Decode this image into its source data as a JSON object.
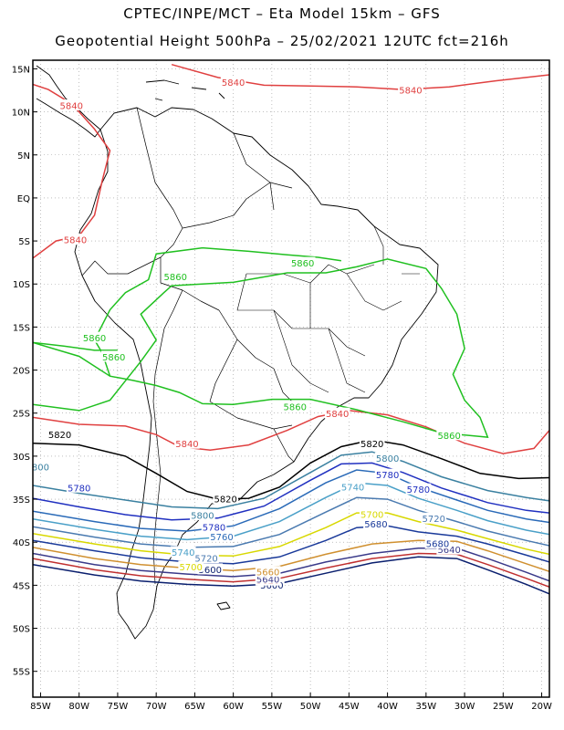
{
  "header": {
    "line1": "CPTEC/INPE/MCT –  Eta Model 15km – GFS",
    "line2": "Geopotential Height 500hPa – 25/02/2021 12UTC fct=216h"
  },
  "axes": {
    "lat_ticks": [
      {
        "lat": 15,
        "label": "15N"
      },
      {
        "lat": 10,
        "label": "10N"
      },
      {
        "lat": 5,
        "label": "5N"
      },
      {
        "lat": 0,
        "label": "EQ"
      },
      {
        "lat": -5,
        "label": "5S"
      },
      {
        "lat": -10,
        "label": "10S"
      },
      {
        "lat": -15,
        "label": "15S"
      },
      {
        "lat": -20,
        "label": "20S"
      },
      {
        "lat": -25,
        "label": "25S"
      },
      {
        "lat": -30,
        "label": "30S"
      },
      {
        "lat": -35,
        "label": "35S"
      },
      {
        "lat": -40,
        "label": "40S"
      },
      {
        "lat": -45,
        "label": "45S"
      },
      {
        "lat": -50,
        "label": "50S"
      },
      {
        "lat": -55,
        "label": "55S"
      }
    ],
    "lon_ticks": [
      {
        "lon": -85,
        "label": "85W"
      },
      {
        "lon": -80,
        "label": "80W"
      },
      {
        "lon": -75,
        "label": "75W"
      },
      {
        "lon": -70,
        "label": "70W"
      },
      {
        "lon": -65,
        "label": "65W"
      },
      {
        "lon": -60,
        "label": "60W"
      },
      {
        "lon": -55,
        "label": "55W"
      },
      {
        "lon": -50,
        "label": "50W"
      },
      {
        "lon": -45,
        "label": "45W"
      },
      {
        "lon": -40,
        "label": "40W"
      },
      {
        "lon": -35,
        "label": "35W"
      },
      {
        "lon": -30,
        "label": "30W"
      },
      {
        "lon": -25,
        "label": "25W"
      },
      {
        "lon": -20,
        "label": "20W"
      }
    ],
    "lat_range": [
      -58,
      16
    ],
    "lon_range": [
      -86,
      -19
    ]
  },
  "contours": [
    {
      "level": "5600",
      "color": "#0a1f6e",
      "labels": [
        {
          "text": "5600",
          "lon": -63,
          "lat": -43.2
        },
        {
          "text": "5600",
          "lon": -55,
          "lat": -45.0
        }
      ]
    },
    {
      "level": "5620",
      "color": "#c03030",
      "labels": [
        {
          "text": "5620",
          "lon": -55.5,
          "lat": -44.5
        }
      ]
    },
    {
      "level": "5640",
      "color": "#3a3a8a",
      "labels": [
        {
          "text": "5640",
          "lon": -32,
          "lat": -40.9
        },
        {
          "text": "5640",
          "lon": -55.5,
          "lat": -44.3
        }
      ]
    },
    {
      "level": "5660",
      "color": "#d09030",
      "labels": [
        {
          "text": "5660",
          "lon": -55.5,
          "lat": -43.5
        }
      ]
    },
    {
      "level": "5680",
      "color": "#1a3a9a",
      "labels": [
        {
          "text": "5680",
          "lon": -41.5,
          "lat": -37.9
        },
        {
          "text": "5680",
          "lon": -33.5,
          "lat": -40.2
        }
      ]
    },
    {
      "level": "5700",
      "color": "#d8d800",
      "labels": [
        {
          "text": "5700",
          "lon": -42,
          "lat": -36.8
        },
        {
          "text": "5700",
          "lon": -65.5,
          "lat": -42.9
        }
      ]
    },
    {
      "level": "5720",
      "color": "#4a7ab0",
      "labels": [
        {
          "text": "5720",
          "lon": -63.5,
          "lat": -41.9
        },
        {
          "text": "5720",
          "lon": -34,
          "lat": -37.3
        }
      ]
    },
    {
      "level": "5740",
      "color": "#4aa0c8",
      "labels": [
        {
          "text": "5740",
          "lon": -66.5,
          "lat": -41.2
        },
        {
          "text": "5740",
          "lon": -44.5,
          "lat": -33.6
        }
      ]
    },
    {
      "level": "5760",
      "color": "#2a6ab8",
      "labels": [
        {
          "text": "5760",
          "lon": -61.5,
          "lat": -39.4
        }
      ]
    },
    {
      "level": "5780",
      "color": "#2030c0",
      "labels": [
        {
          "text": "5780",
          "lon": -80,
          "lat": -33.7
        },
        {
          "text": "5780",
          "lon": -62.5,
          "lat": -38.3
        },
        {
          "text": "5780",
          "lon": -40,
          "lat": -32.2
        },
        {
          "text": "5780",
          "lon": -36,
          "lat": -33.9
        }
      ]
    },
    {
      "level": "5800",
      "color": "#3a80a0",
      "labels": [
        {
          "text": "800",
          "lon": -85,
          "lat": -31.3
        },
        {
          "text": "5800",
          "lon": -64,
          "lat": -36.9
        },
        {
          "text": "5800",
          "lon": -40,
          "lat": -30.3
        }
      ]
    },
    {
      "level": "5820",
      "color": "#000000",
      "labels": [
        {
          "text": "5820",
          "lon": -82.5,
          "lat": -27.5
        },
        {
          "text": "5820",
          "lon": -61,
          "lat": -35.0
        },
        {
          "text": "5820",
          "lon": -42,
          "lat": -28.6
        }
      ]
    },
    {
      "level": "5840",
      "color": "#e04040",
      "labels": [
        {
          "text": "5840",
          "lon": -60,
          "lat": 13.4
        },
        {
          "text": "5840",
          "lon": -37,
          "lat": 12.5
        },
        {
          "text": "5840",
          "lon": -81,
          "lat": 10.7
        },
        {
          "text": "5840",
          "lon": -80.5,
          "lat": -4.9
        },
        {
          "text": "5840",
          "lon": -46.5,
          "lat": -25.1
        },
        {
          "text": "5840",
          "lon": -66,
          "lat": -28.6
        }
      ]
    },
    {
      "level": "5860",
      "color": "#20c020",
      "labels": [
        {
          "text": "5860",
          "lon": -67.5,
          "lat": -9.2
        },
        {
          "text": "5860",
          "lon": -51,
          "lat": -7.6
        },
        {
          "text": "5860",
          "lon": -78,
          "lat": -16.3
        },
        {
          "text": "5860",
          "lon": -75.5,
          "lat": -18.5
        },
        {
          "text": "5860",
          "lon": -52,
          "lat": -24.3
        },
        {
          "text": "5860",
          "lon": -32,
          "lat": -27.6
        }
      ]
    }
  ],
  "colors": {
    "background": "#ffffff",
    "frame": "#000000",
    "grid": "#888888",
    "land_outline": "#000000"
  }
}
